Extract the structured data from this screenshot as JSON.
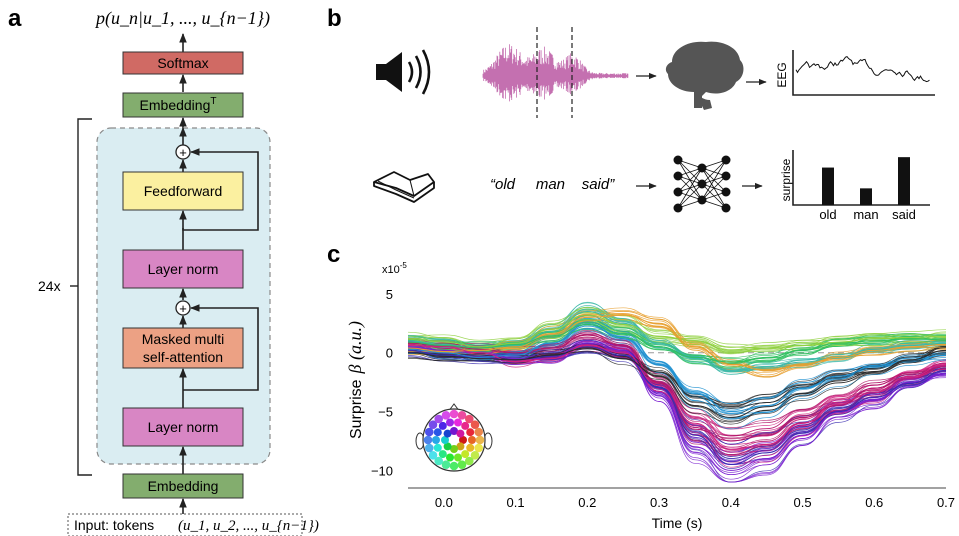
{
  "panels": {
    "a": "a",
    "b": "b",
    "c": "c"
  },
  "panel_a": {
    "output_math": "p(u_n|u_1, ..., u_{n−1})",
    "softmax": "Softmax",
    "embedding_t": "Embedding",
    "embedding_t_sup": "T",
    "repeat": "24x",
    "feedforward": "Feedforward",
    "layer_norm_top": "Layer norm",
    "attention_line1": "Masked multi",
    "attention_line2": "self-attention",
    "layer_norm_bottom": "Layer norm",
    "embedding": "Embedding",
    "input_label": "Input:  tokens",
    "input_math": "(u_1, u_2, ..., u_{n−1})",
    "colors": {
      "softmax": "#d06a64",
      "embedding": "#83ad6e",
      "feedforward": "#fbf0a0",
      "layer_norm": "#d886c4",
      "attention": "#eca184",
      "block_bg": "#daedf2"
    }
  },
  "panel_b": {
    "eeg_label": "EEG",
    "sentence": "“old     man    said”",
    "surprise_label": "surprise",
    "bars": [
      {
        "word": "old",
        "value": 0.72
      },
      {
        "word": "man",
        "value": 0.32
      },
      {
        "word": "said",
        "value": 0.92
      }
    ],
    "icons": [
      "speaker-icon",
      "waveform-icon",
      "brain-icon",
      "book-icon",
      "neural-network-icon"
    ]
  },
  "chart_data": {
    "type": "line",
    "scale_label": "x10",
    "scale_exp": "-5",
    "ylabel": "Surprise",
    "ylabel_symbol": "β (a.u.)",
    "xlabel": "Time (s)",
    "xlim": [
      -0.05,
      0.7
    ],
    "ylim": [
      -11.5,
      5.5
    ],
    "xticks": [
      "0.0",
      "0.1",
      "0.2",
      "0.3",
      "0.4",
      "0.5",
      "0.6",
      "0.7"
    ],
    "yticks": [
      "5",
      "0",
      "−5",
      "−10"
    ],
    "x_values": [
      -0.05,
      0.0,
      0.05,
      0.1,
      0.15,
      0.2,
      0.25,
      0.3,
      0.35,
      0.4,
      0.45,
      0.5,
      0.55,
      0.6,
      0.65,
      0.7
    ],
    "representative_series": [
      {
        "color": "#7a1fd0",
        "values": [
          0.5,
          0.2,
          0.0,
          -0.5,
          -0.5,
          0.8,
          0.2,
          -3.5,
          -8.0,
          -10.0,
          -9.0,
          -7.0,
          -5.0,
          -4.0,
          -2.5,
          -1.8
        ]
      },
      {
        "color": "#b0186a",
        "values": [
          0.8,
          0.6,
          0.3,
          0.0,
          0.4,
          1.5,
          0.6,
          -2.5,
          -6.5,
          -7.5,
          -7.0,
          -5.5,
          -4.5,
          -3.0,
          -2.0,
          -1.2
        ]
      },
      {
        "color": "#3a2bb0",
        "values": [
          0.2,
          -0.2,
          -0.4,
          -0.6,
          -0.3,
          0.5,
          -0.2,
          -3.0,
          -7.0,
          -9.5,
          -8.5,
          -6.8,
          -5.0,
          -3.8,
          -2.6,
          -1.5
        ]
      },
      {
        "color": "#3bb8a8",
        "values": [
          1.0,
          0.7,
          0.4,
          0.6,
          1.8,
          3.5,
          2.5,
          0.8,
          -0.5,
          -1.5,
          -1.2,
          -0.8,
          -0.4,
          0.3,
          0.6,
          0.8
        ]
      },
      {
        "color": "#8fd040",
        "values": [
          1.2,
          0.9,
          0.5,
          0.8,
          2.0,
          3.2,
          2.4,
          1.4,
          1.0,
          0.2,
          0.4,
          0.6,
          0.9,
          1.2,
          1.3,
          1.4
        ]
      },
      {
        "color": "#e8a030",
        "values": [
          0.4,
          0.1,
          0.2,
          0.5,
          1.6,
          3.0,
          3.2,
          2.5,
          0.5,
          -1.0,
          -1.5,
          -1.0,
          -0.4,
          0.2,
          0.5,
          0.7
        ]
      },
      {
        "color": "#2090d0",
        "values": [
          0.3,
          0.0,
          -0.4,
          -0.2,
          0.8,
          2.4,
          1.2,
          -1.0,
          -3.5,
          -5.0,
          -4.5,
          -3.0,
          -2.0,
          -1.2,
          -0.6,
          -0.2
        ]
      },
      {
        "color": "#d02080",
        "values": [
          0.6,
          0.5,
          0.0,
          -0.8,
          -0.5,
          0.6,
          0.0,
          -2.8,
          -6.0,
          -8.2,
          -7.8,
          -6.0,
          -4.2,
          -3.4,
          -2.0,
          -1.0
        ]
      },
      {
        "color": "#2a2a2a",
        "values": [
          0.0,
          -0.3,
          -0.5,
          -0.6,
          -0.2,
          0.4,
          -0.5,
          -2.0,
          -4.5,
          -5.5,
          -4.6,
          -3.5,
          -2.4,
          -1.6,
          -0.6,
          0.2
        ]
      },
      {
        "color": "#30c060",
        "values": [
          0.9,
          0.6,
          0.4,
          0.7,
          1.4,
          2.4,
          1.6,
          0.5,
          -0.4,
          -0.8,
          -0.4,
          0.2,
          0.8,
          1.0,
          1.2,
          1.1
        ]
      }
    ],
    "grid": false
  }
}
